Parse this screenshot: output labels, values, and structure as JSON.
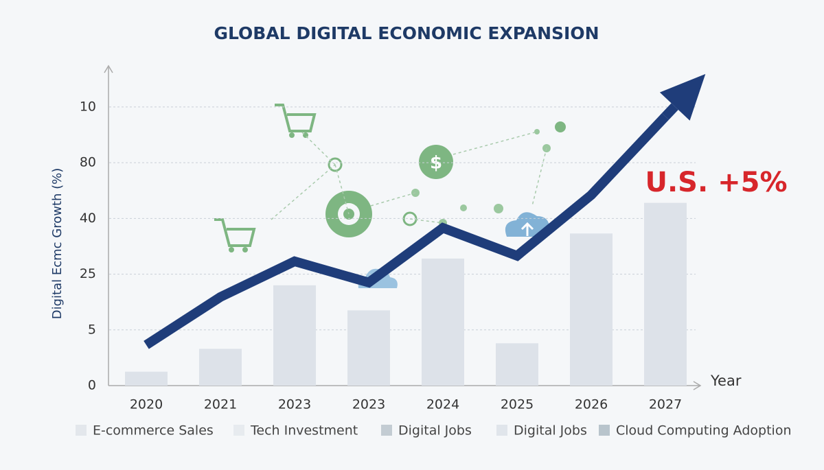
{
  "chart_data": {
    "type": "bar_line",
    "title": "GLOBAL DIGITAL ECONOMIC EXPANSION",
    "y_label": "Digital Ecmc Growth (%)",
    "x_label": "Year",
    "annotation": "U.S. +5%",
    "categories": [
      "2020",
      "2021",
      "2023",
      "2023",
      "2024",
      "2025",
      "2026",
      "2027"
    ],
    "bar_values": [
      0.25,
      0.66,
      1.8,
      1.35,
      2.28,
      0.76,
      2.73,
      3.28
    ],
    "bar_color": "#dde2e9",
    "line_values": [
      0.73,
      1.59,
      2.23,
      1.85,
      2.83,
      2.33,
      3.42,
      4.83
    ],
    "line_color": "#1f3d7a",
    "ylim": [
      0,
      5.75
    ],
    "yticks": [
      {
        "value": 0,
        "label": "0"
      },
      {
        "value": 1,
        "label": "5"
      },
      {
        "value": 2,
        "label": "25"
      },
      {
        "value": 3,
        "label": "40"
      },
      {
        "value": 4,
        "label": "80"
      },
      {
        "value": 5,
        "label": "10"
      }
    ],
    "grid": true,
    "legend": [
      {
        "name": "E-commerce Sales",
        "color": "#e3e7ec"
      },
      {
        "name": "Tech Investment",
        "color": "#e7ebef"
      },
      {
        "name": "Digital Jobs",
        "color": "#c3ccd3"
      },
      {
        "name": "Digital Jobs",
        "color": "#e0e5eb"
      },
      {
        "name": "Cloud Computing Adoption",
        "color": "#b8c4cc"
      }
    ]
  }
}
